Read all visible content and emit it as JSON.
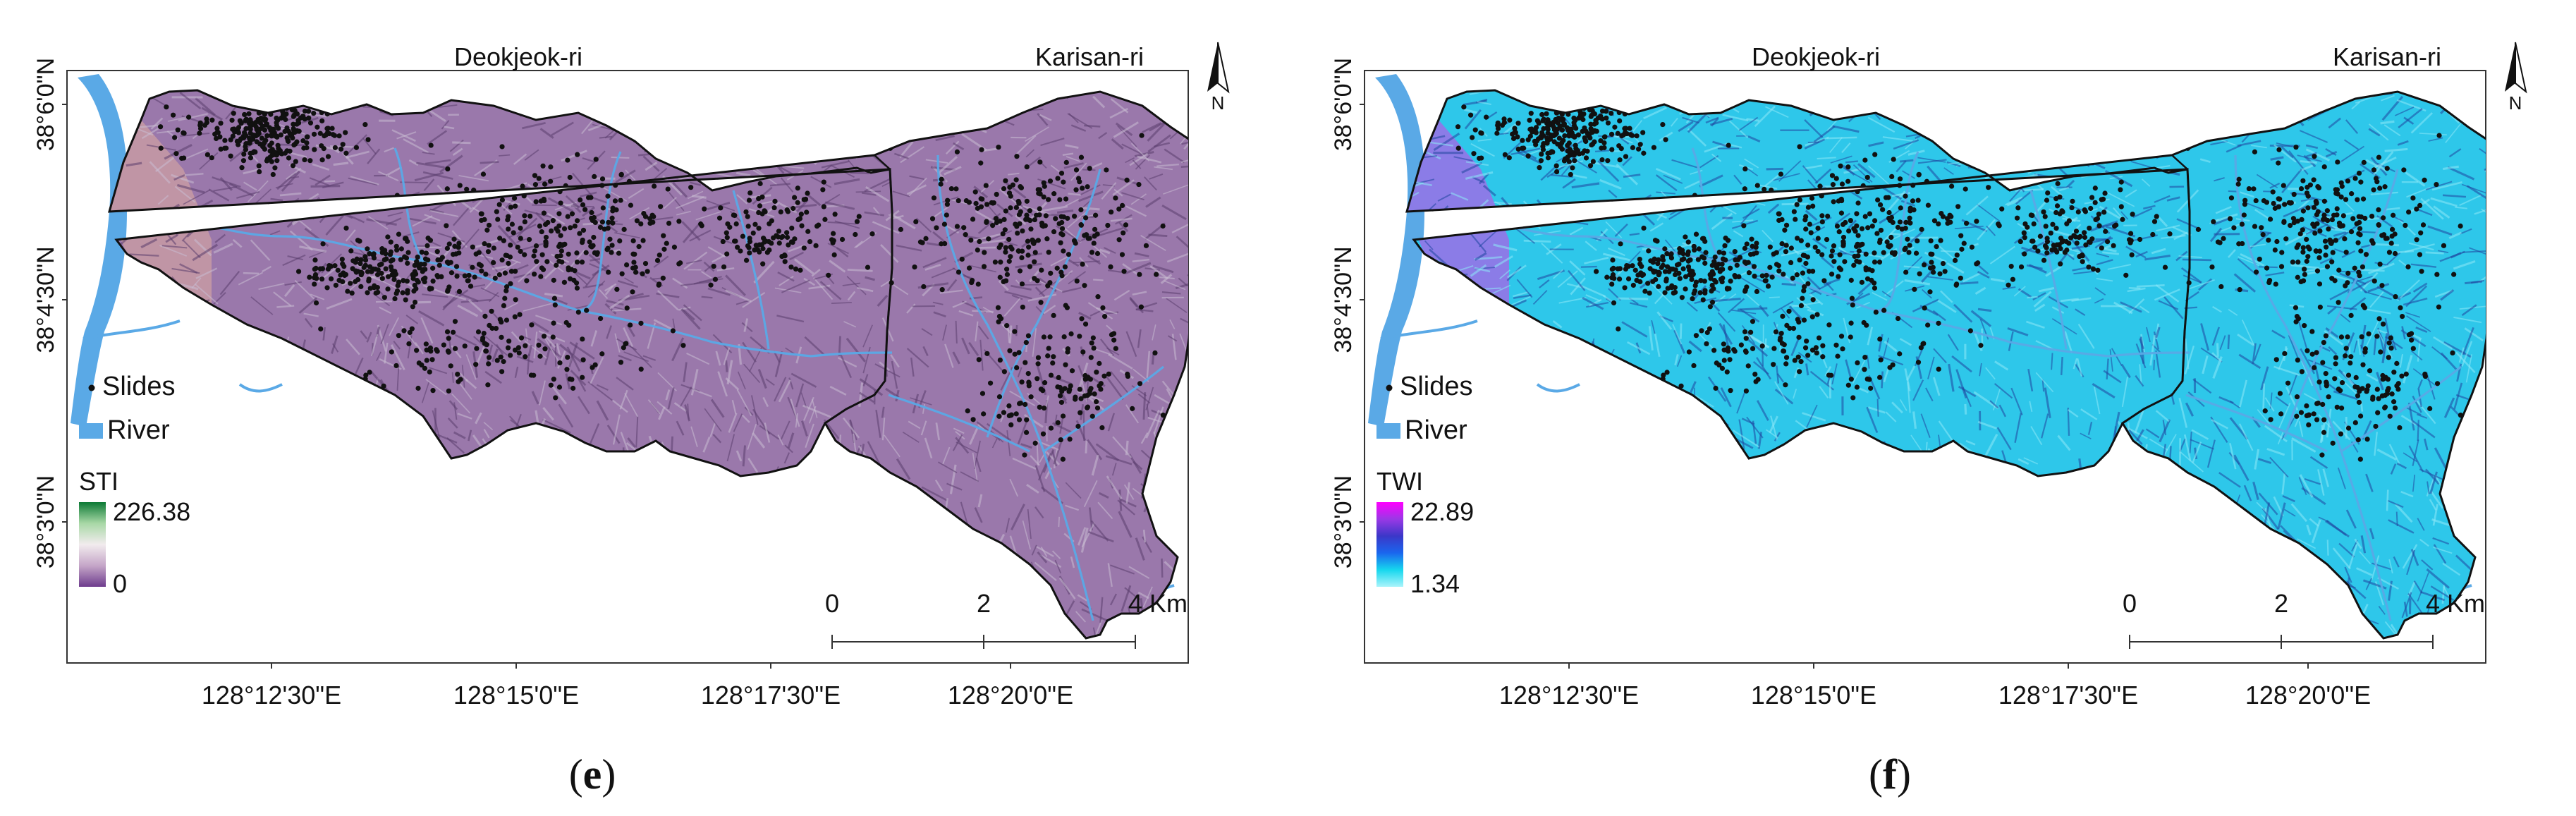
{
  "panels": [
    {
      "id": "e",
      "caption_letter": "e",
      "place_left": "Deokjeok-ri",
      "place_right": "Karisan-ri",
      "north_label": "N",
      "legend": {
        "points_label": "Slides",
        "river_label": "River",
        "raster_title": "STI",
        "raster_max": "226.38",
        "raster_min": "0",
        "ramp_colors": [
          "#0c7a35",
          "#a8d8a6",
          "#f2ecee",
          "#c5a6c8",
          "#6e3c8d"
        ]
      },
      "scale": {
        "labels": [
          "0",
          "2",
          "4 Km"
        ]
      },
      "lat_ticks": [
        "38°6'0\"N",
        "38°4'30\"N",
        "38°3'0\"N"
      ],
      "lon_ticks": [
        "128°12'30\"E",
        "128°15'0\"E",
        "128°17'30\"E",
        "128°20'0\"E"
      ],
      "colors": {
        "base": "#9a78ab",
        "shade_dark": "#5b3e6e",
        "shade_light": "#c9bcd2",
        "west_patch": "#c79aa3",
        "river": "#5aa9e6",
        "dots": "#111111"
      }
    },
    {
      "id": "f",
      "caption_letter": "f",
      "place_left": "Deokjeok-ri",
      "place_right": "Karisan-ri",
      "north_label": "N",
      "legend": {
        "points_label": "Slides",
        "river_label": "River",
        "raster_title": "TWI",
        "raster_max": "22.89",
        "raster_min": "1.34",
        "ramp_colors": [
          "#ff00ff",
          "#9a38e6",
          "#3b37c8",
          "#1a66ee",
          "#16d7ee",
          "#a9f4fb"
        ]
      },
      "scale": {
        "labels": [
          "0",
          "2",
          "4 Km"
        ]
      },
      "lat_ticks": [
        "38°6'0\"N",
        "38°4'30\"N",
        "38°3'0\"N"
      ],
      "lon_ticks": [
        "128°12'30\"E",
        "128°15'0\"E",
        "128°17'30\"E",
        "128°20'0\"E"
      ],
      "colors": {
        "base": "#2ec7ea",
        "shade_dark": "#2046a0",
        "shade_light": "#8ee8f7",
        "west_patch": "#9b6fe6",
        "river": "#5aa9e6",
        "dots": "#111111"
      }
    }
  ]
}
